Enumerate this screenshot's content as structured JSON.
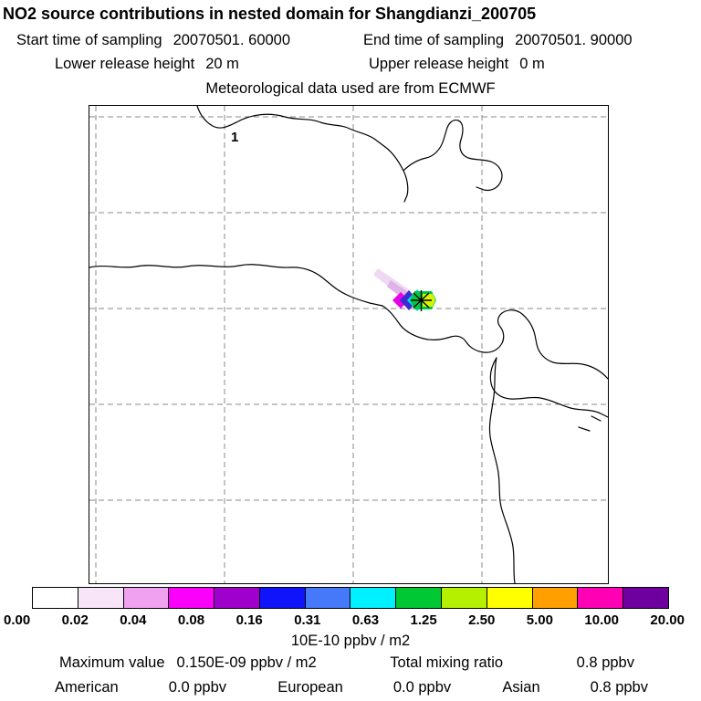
{
  "header": {
    "title": "NO2 source contributions in nested domain for Shangdianzi_200705",
    "sampling": {
      "start_label": "Start time of sampling",
      "start_value": "20070501. 60000",
      "end_label": "End time of sampling",
      "end_value": "20070501. 90000"
    },
    "release": {
      "lower_label": "Lower release height",
      "lower_value": "20 m",
      "upper_label": "Upper release height",
      "upper_value": "0 m"
    },
    "met_line": "Meteorological data used are from ECMWF"
  },
  "map": {
    "grid_label": "1"
  },
  "colorbar": {
    "units": "10E-10 ppbv / m2",
    "tick_labels": [
      "0.00",
      "0.02",
      "0.04",
      "0.08",
      "0.16",
      "0.31",
      "0.63",
      "1.25",
      "2.50",
      "5.00",
      "10.00",
      "20.00"
    ],
    "segment_colors": [
      "#ffffff",
      "#f8e6f8",
      "#f0a2f0",
      "#fa00fa",
      "#a000cc",
      "#0f14fa",
      "#4678fa",
      "#00f0ff",
      "#00c832",
      "#b4f000",
      "#ffff00",
      "#ffa000",
      "#ff00b4",
      "#6e00a0"
    ]
  },
  "stats": {
    "max_label": "Maximum value",
    "max_value": "0.150E-09 ppbv / m2",
    "total_label": "Total mixing ratio",
    "total_value": "0.8 ppbv",
    "regions": [
      {
        "name": "American",
        "value": "0.0 ppbv"
      },
      {
        "name": "European",
        "value": "0.0 ppbv"
      },
      {
        "name": "Asian",
        "value": "0.8 ppbv"
      }
    ]
  },
  "chart_data": {
    "type": "heatmap",
    "title": "NO2 source contributions in nested domain for Shangdianzi_200705",
    "subtitle": "Meteorological data used are from ECMWF",
    "sampling_start": "20070501. 60000",
    "sampling_end": "20070501. 90000",
    "lower_release_height_m": 20,
    "upper_release_height_m": 0,
    "colorbar_levels": [
      0.0,
      0.02,
      0.04,
      0.08,
      0.16,
      0.31,
      0.63,
      1.25,
      2.5,
      5.0,
      10.0,
      20.0
    ],
    "colorbar_units": "10E-10 ppbv / m2",
    "maximum_value": "0.150E-09 ppbv / m2",
    "total_mixing_ratio_ppbv": 0.8,
    "source_contributions_ppbv": {
      "American": 0.0,
      "European": 0.0,
      "Asian": 0.8
    },
    "layout": {
      "legend": "horizontal colorbar bottom",
      "grid": "dashed lat-lon grid",
      "plume_location": "center of map near receptor asterisk"
    }
  }
}
